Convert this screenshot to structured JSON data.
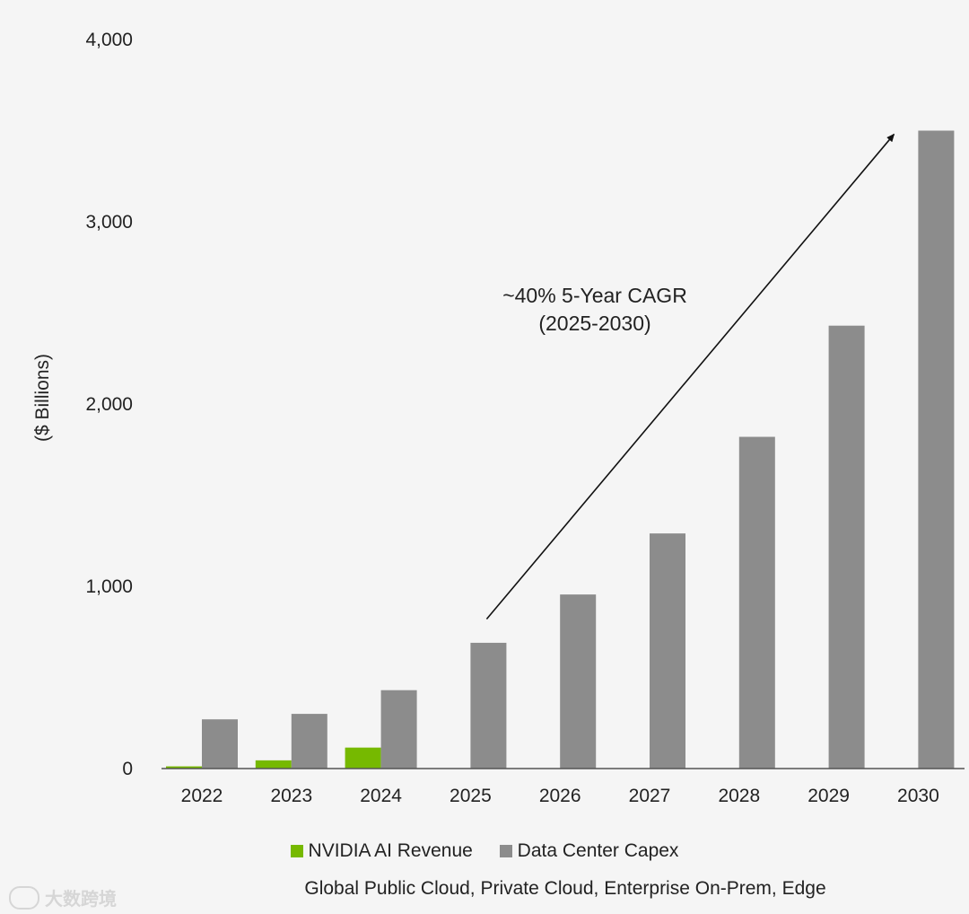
{
  "chart_data": {
    "type": "bar",
    "categories": [
      "2022",
      "2023",
      "2024",
      "2025",
      "2026",
      "2027",
      "2028",
      "2029",
      "2030"
    ],
    "series": [
      {
        "name": "NVIDIA AI Revenue",
        "values": [
          12,
          45,
          115,
          null,
          null,
          null,
          null,
          null,
          null
        ],
        "color": "#76b900"
      },
      {
        "name": "Data Center Capex",
        "values": [
          270,
          300,
          430,
          690,
          955,
          1290,
          1820,
          2430,
          3500
        ],
        "color": "#8c8c8c"
      }
    ],
    "ylabel": "($ Billions)",
    "ylim": [
      0,
      4000
    ],
    "yticks": [
      0,
      1000,
      2000,
      3000,
      4000
    ],
    "ytick_labels": [
      "0",
      "1,000",
      "2,000",
      "3,000",
      "4,000"
    ],
    "grid": false,
    "legend_position": "bottom",
    "annotation": {
      "line1": "~40% 5-Year CAGR",
      "line2": "(2025-2030)",
      "arrow_from": {
        "category": "2025",
        "value": 820
      },
      "arrow_to": {
        "category": "2030",
        "value": 3480
      }
    },
    "caption": "Global Public Cloud, Private Cloud, Enterprise On-Prem, Edge"
  },
  "watermark": {
    "text": "大数跨境"
  }
}
